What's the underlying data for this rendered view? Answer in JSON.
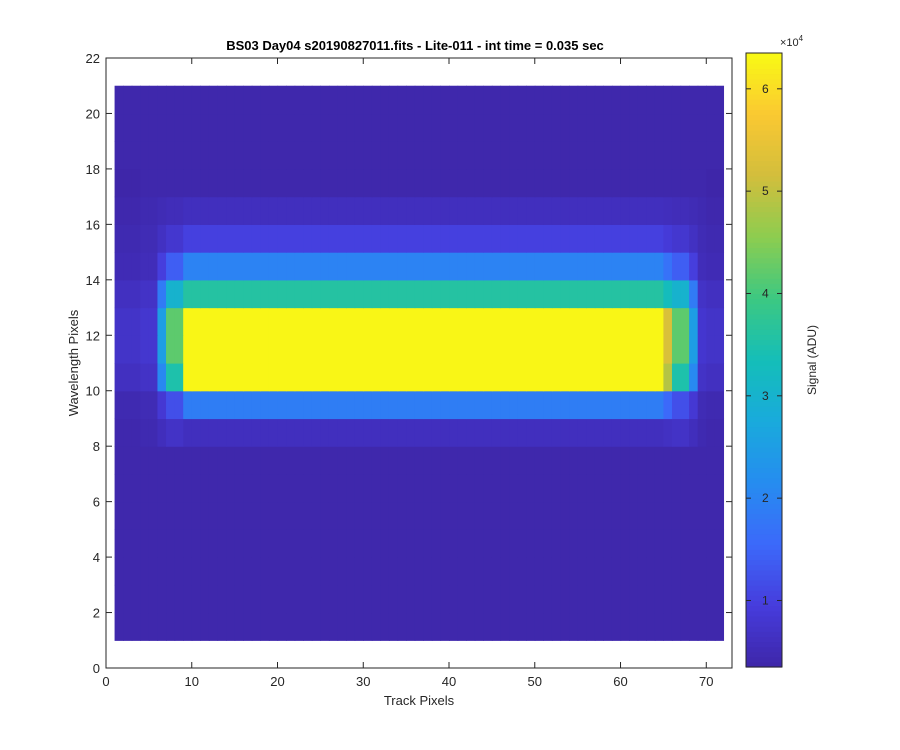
{
  "chart_data": {
    "type": "heatmap",
    "title": "BS03 Day04  s20190827011.fits - Lite-011 - int time = 0.035 sec",
    "xlabel": "Track Pixels",
    "ylabel": "Wavelength Pixels",
    "xlim": [
      0,
      73
    ],
    "ylim": [
      0,
      22
    ],
    "xticks": [
      0,
      10,
      20,
      30,
      40,
      50,
      60,
      70
    ],
    "yticks": [
      0,
      2,
      4,
      6,
      8,
      10,
      12,
      14,
      16,
      18,
      20,
      22
    ],
    "x_range": [
      1,
      72
    ],
    "y_range": [
      1,
      21
    ],
    "colormap": "parula",
    "colorbar": {
      "label": "Signal (ADU)",
      "exponent_label": "×10",
      "exponent": "4",
      "clim": [
        0.35,
        6.35
      ],
      "ticks": [
        1,
        2,
        3,
        4,
        5,
        6
      ],
      "tick_labels": [
        "1",
        "2",
        "3",
        "4",
        "5",
        "6"
      ]
    },
    "grid": false,
    "values_unit": "x10^4 ADU",
    "rows": [
      {
        "y": 1,
        "left": 0.4,
        "edge": 0.4,
        "center": 0.4
      },
      {
        "y": 8,
        "left": 0.45,
        "edge": 0.7,
        "center": 0.6
      },
      {
        "y": 9,
        "left": 0.5,
        "edge": 1.2,
        "center": 1.9
      },
      {
        "y": 10,
        "left": 0.7,
        "edge": 3.5,
        "center": 6.3
      },
      {
        "y": 11,
        "left": 0.8,
        "edge": 4.2,
        "center": 6.3
      },
      {
        "y": 12,
        "left": 0.8,
        "edge": 4.2,
        "center": 6.3
      },
      {
        "y": 13,
        "left": 0.7,
        "edge": 3.0,
        "center": 3.6
      },
      {
        "y": 14,
        "left": 0.55,
        "edge": 1.4,
        "center": 2.0
      },
      {
        "y": 15,
        "left": 0.5,
        "edge": 0.8,
        "center": 1.0
      },
      {
        "y": 16,
        "left": 0.45,
        "edge": 0.55,
        "center": 0.6
      },
      {
        "y": 17,
        "left": 0.4,
        "edge": 0.4,
        "center": 0.4
      }
    ]
  }
}
